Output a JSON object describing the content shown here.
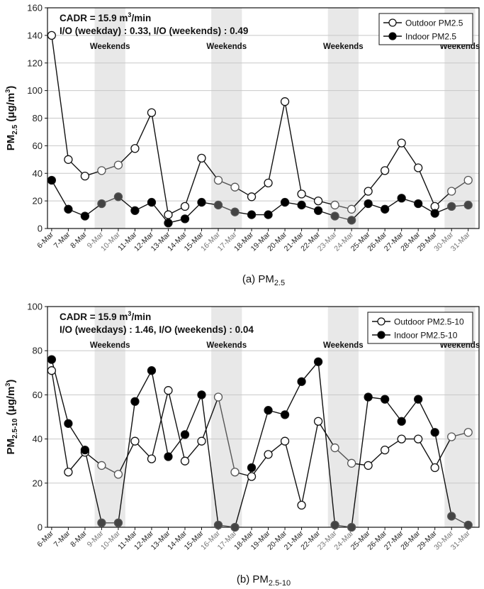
{
  "charts": [
    {
      "id": "pm25",
      "chart_data": {
        "type": "line",
        "categories": [
          "6-Mar",
          "7-Mar",
          "8-Mar",
          "9-Mar",
          "10-Mar",
          "11-Mar",
          "12-Mar",
          "13-Mar",
          "14-Mar",
          "15-Mar",
          "16-Mar",
          "17-Mar",
          "18-Mar",
          "19-Mar",
          "20-Mar",
          "21-Mar",
          "22-Mar",
          "23-Mar",
          "24-Mar",
          "25-Mar",
          "26-Mar",
          "27-Mar",
          "28-Mar",
          "29-Mar",
          "30-Mar",
          "31-Mar"
        ],
        "weekend_indices": [
          3,
          4,
          10,
          11,
          17,
          18,
          24,
          25
        ],
        "series": [
          {
            "name": "Outdoor PM2.5",
            "marker": "open-circle",
            "values": [
              140,
              50,
              38,
              42,
              46,
              58,
              84,
              10,
              16,
              51,
              35,
              30,
              23,
              33,
              92,
              25,
              20,
              17,
              14,
              27,
              42,
              62,
              44,
              16,
              27,
              35
            ]
          },
          {
            "name": "Indoor PM2.5",
            "marker": "filled-circle",
            "values": [
              35,
              14,
              9,
              18,
              23,
              13,
              19,
              4,
              7,
              19,
              17,
              12,
              10,
              10,
              19,
              17,
              13,
              9,
              6,
              18,
              14,
              22,
              18,
              11,
              16,
              17
            ]
          }
        ],
        "ylim": [
          0,
          160
        ],
        "yticks": [
          0,
          20,
          40,
          60,
          80,
          100,
          120,
          140,
          160
        ],
        "ylabel_main": "PM",
        "ylabel_sub": "2.5",
        "ylabel_unit_pre": " (μg/m",
        "ylabel_unit_sup": "3",
        "ylabel_unit_post": ")",
        "weekend_label": "Weekends",
        "annotation_line1_pre": "CADR = 15.9 m",
        "annotation_line1_sup": "3",
        "annotation_line1_post": "/min",
        "annotation_line2": "I/O (weekday) : 0.33, I/O (weekends) : 0.49",
        "caption_pre": "(a) PM",
        "caption_sub": "2.5",
        "legend_position": "top-right"
      }
    },
    {
      "id": "pm2510",
      "chart_data": {
        "type": "line",
        "categories": [
          "6-Mar",
          "7-Mar",
          "8-Mar",
          "9-Mar",
          "10-Mar",
          "11-Mar",
          "12-Mar",
          "13-Mar",
          "14-Mar",
          "15-Mar",
          "16-Mar",
          "17-Mar",
          "18-Mar",
          "19-Mar",
          "20-Mar",
          "21-Mar",
          "22-Mar",
          "23-Mar",
          "24-Mar",
          "25-Mar",
          "26-Mar",
          "27-Mar",
          "28-Mar",
          "29-Mar",
          "30-Mar",
          "31-Mar"
        ],
        "weekend_indices": [
          3,
          4,
          10,
          11,
          17,
          18,
          24,
          25
        ],
        "series": [
          {
            "name": "Outdoor PM2.5-10",
            "marker": "open-circle",
            "values": [
              71,
              25,
              34,
              28,
              24,
              39,
              31,
              62,
              30,
              39,
              59,
              25,
              23,
              33,
              39,
              10,
              48,
              36,
              29,
              28,
              35,
              40,
              40,
              27,
              41,
              43
            ]
          },
          {
            "name": "Indoor PM2.5-10",
            "marker": "filled-circle",
            "values": [
              76,
              47,
              35,
              2,
              2,
              57,
              71,
              32,
              42,
              60,
              1,
              0,
              27,
              53,
              51,
              66,
              75,
              1,
              0,
              59,
              58,
              48,
              58,
              43,
              5,
              1
            ]
          }
        ],
        "ylim": [
          0,
          100
        ],
        "yticks": [
          0,
          20,
          40,
          60,
          80,
          100
        ],
        "ylabel_main": "PM",
        "ylabel_sub": "2.5-10",
        "ylabel_unit_pre": " (μg/m",
        "ylabel_unit_sup": "3",
        "ylabel_unit_post": ")",
        "weekend_label": "Weekends",
        "annotation_line1_pre": "CADR = 15.9 m",
        "annotation_line1_sup": "3",
        "annotation_line1_post": "/min",
        "annotation_line2": "I/O (weekdays) : 1.46, I/O (weekends) : 0.04",
        "caption_pre": "(b) PM",
        "caption_sub": "2.5-10",
        "legend_position": "top-right"
      }
    }
  ],
  "colors": {
    "weekend_band": "#e8e8e8",
    "line": "#111111",
    "weekend_line": "#555555",
    "axis": "#111111",
    "grid": "#c8c8c8"
  }
}
